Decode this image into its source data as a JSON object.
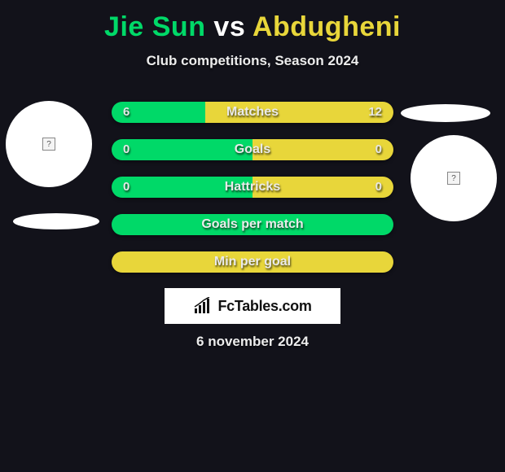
{
  "colors": {
    "bg": "#12121a",
    "green": "#00d968",
    "yellow": "#e8d63a",
    "white": "#ffffff",
    "bar_border_green": "#0d9c4d",
    "bar_border_yellow": "#b8a617"
  },
  "title": {
    "player1": "Jie Sun",
    "vs": "vs",
    "player2": "Abdugheni"
  },
  "subtitle": "Club competitions, Season 2024",
  "stats": [
    {
      "label": "Matches",
      "left_val": "6",
      "right_val": "12",
      "left_pct": 33.3,
      "right_pct": 66.7,
      "left_color": "#00d968",
      "right_color": "#e8d63a",
      "show_vals": true
    },
    {
      "label": "Goals",
      "left_val": "0",
      "right_val": "0",
      "left_pct": 50,
      "right_pct": 50,
      "left_color": "#00d968",
      "right_color": "#e8d63a",
      "show_vals": true
    },
    {
      "label": "Hattricks",
      "left_val": "0",
      "right_val": "0",
      "left_pct": 50,
      "right_pct": 50,
      "left_color": "#00d968",
      "right_color": "#e8d63a",
      "show_vals": true
    },
    {
      "label": "Goals per match",
      "left_val": "",
      "right_val": "",
      "left_pct": 100,
      "right_pct": 0,
      "left_color": "#00d968",
      "right_color": "#e8d63a",
      "show_vals": false
    },
    {
      "label": "Min per goal",
      "left_val": "",
      "right_val": "",
      "left_pct": 0,
      "right_pct": 100,
      "left_color": "#00d968",
      "right_color": "#e8d63a",
      "show_vals": false
    }
  ],
  "branding": "FcTables.com",
  "date": "6 november 2024",
  "flag_placeholder": "?"
}
